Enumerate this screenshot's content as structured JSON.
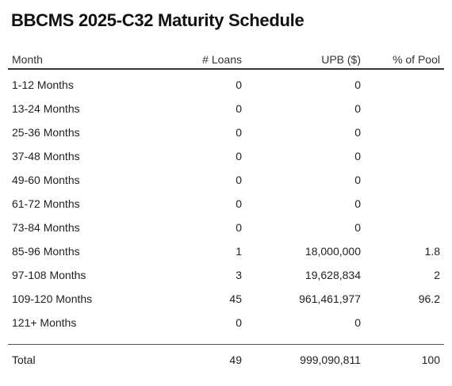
{
  "title": "BBCMS 2025-C32 Maturity Schedule",
  "columns": {
    "month": "Month",
    "loans": "# Loans",
    "upb": "UPB ($)",
    "pool": "% of Pool"
  },
  "rows": [
    {
      "month": "1-12 Months",
      "loans": "0",
      "upb": "0",
      "pool": ""
    },
    {
      "month": "13-24 Months",
      "loans": "0",
      "upb": "0",
      "pool": ""
    },
    {
      "month": "25-36 Months",
      "loans": "0",
      "upb": "0",
      "pool": ""
    },
    {
      "month": "37-48 Months",
      "loans": "0",
      "upb": "0",
      "pool": ""
    },
    {
      "month": "49-60 Months",
      "loans": "0",
      "upb": "0",
      "pool": ""
    },
    {
      "month": "61-72 Months",
      "loans": "0",
      "upb": "0",
      "pool": ""
    },
    {
      "month": "73-84 Months",
      "loans": "0",
      "upb": "0",
      "pool": ""
    },
    {
      "month": "85-96 Months",
      "loans": "1",
      "upb": "18,000,000",
      "pool": "1.8"
    },
    {
      "month": "97-108 Months",
      "loans": "3",
      "upb": "19,628,834",
      "pool": "2"
    },
    {
      "month": "109-120 Months",
      "loans": "45",
      "upb": "961,461,977",
      "pool": "96.2"
    },
    {
      "month": "121+ Months",
      "loans": "0",
      "upb": "0",
      "pool": ""
    }
  ],
  "total": {
    "month": "Total",
    "loans": "49",
    "upb": "999,090,811",
    "pool": "100"
  }
}
